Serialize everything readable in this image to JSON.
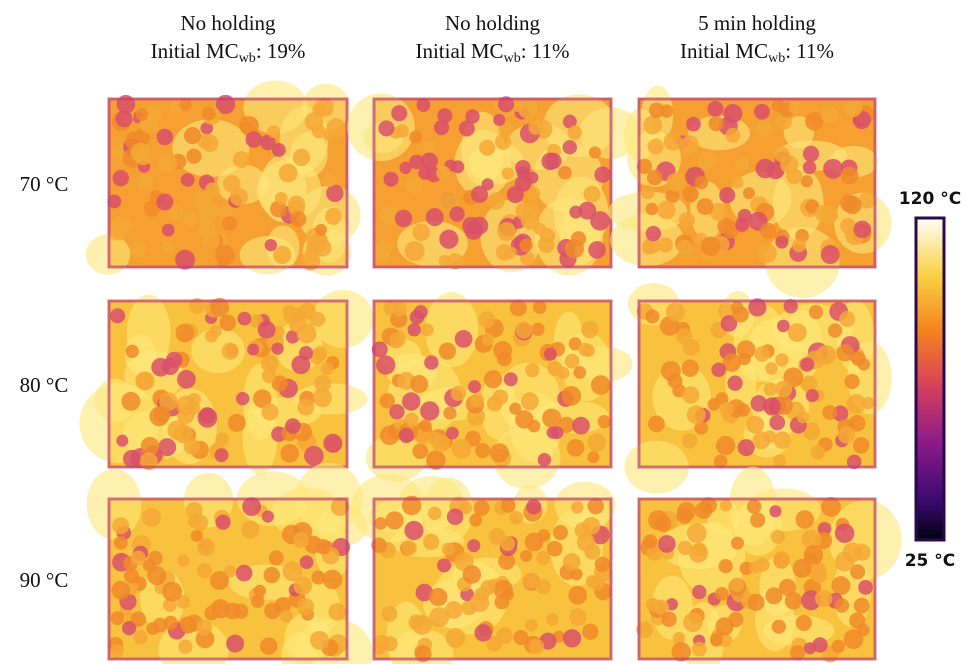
{
  "columns": [
    {
      "line1": "No holding",
      "line2": "Initial MC",
      "line2_sub": "wb",
      "line2_rest": ": 19%"
    },
    {
      "line1": "No holding",
      "line2": "Initial MC",
      "line2_sub": "wb",
      "line2_rest": ": 11%"
    },
    {
      "line1": "5 min holding",
      "line2": "Initial MC",
      "line2_sub": "wb",
      "line2_rest": ": 11%"
    }
  ],
  "rows": [
    "70 °C",
    "80 °C",
    "90 °C"
  ],
  "colorbar": {
    "max_label": "120 °C",
    "min_label": "25 °C"
  }
}
